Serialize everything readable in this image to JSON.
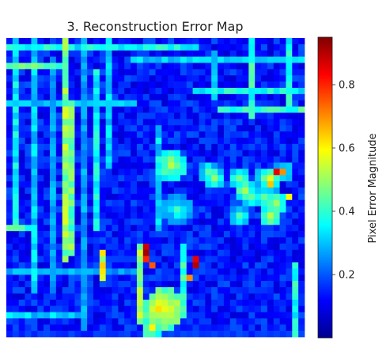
{
  "chart_data": {
    "type": "heatmap",
    "title": "3. Reconstruction Error Map",
    "colormap": "jet",
    "grid_rows": 48,
    "grid_cols": 48,
    "axes_visible": false,
    "colorbar": {
      "label": "Pixel Error Magnitude",
      "range": [
        0.0,
        0.95
      ],
      "ticks": [
        {
          "value": 0.2,
          "label": "0.2"
        },
        {
          "value": 0.4,
          "label": "0.4"
        },
        {
          "value": 0.6,
          "label": "0.6"
        },
        {
          "value": 0.8,
          "label": "0.8"
        }
      ],
      "placement": "right"
    },
    "regions": [
      {
        "name": "background",
        "level": 0.12
      },
      {
        "name": "left-wall-streaks",
        "level": 0.45
      },
      {
        "name": "center-face",
        "level": 0.55
      },
      {
        "name": "right-arm-area",
        "level": 0.4
      },
      {
        "name": "hotspot-lower-center",
        "level": 0.9
      },
      {
        "name": "bottom-center-blob",
        "level": 0.65
      }
    ]
  }
}
